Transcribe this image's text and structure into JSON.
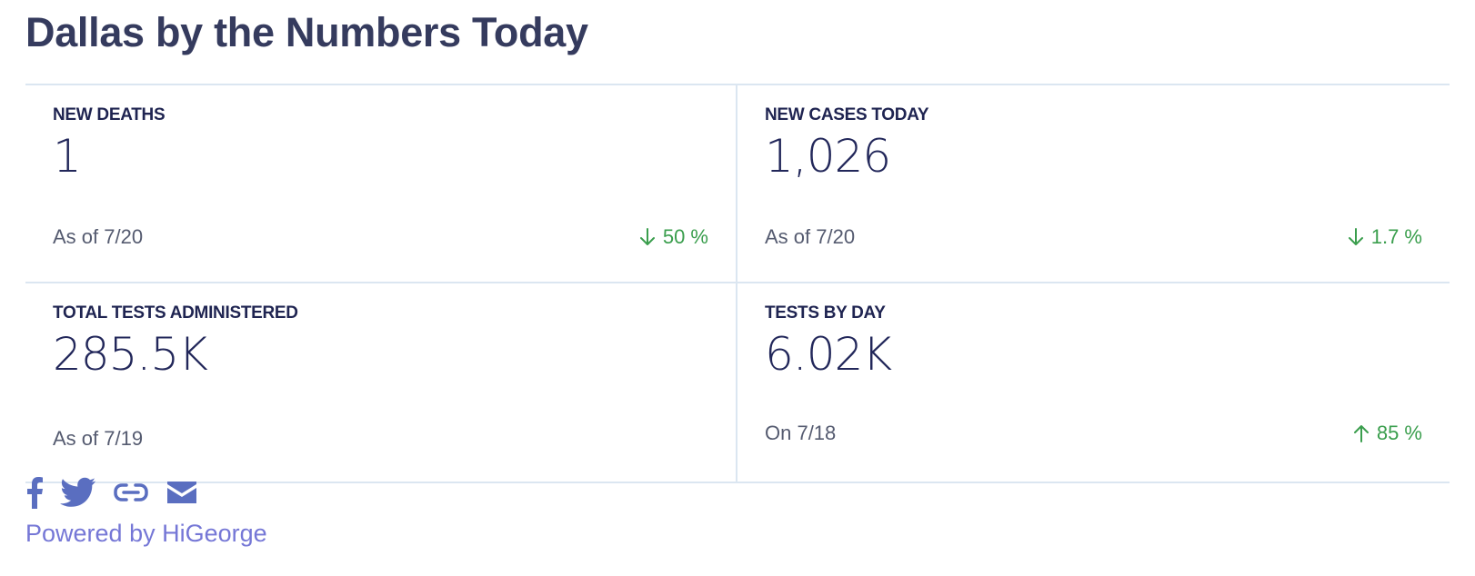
{
  "header": {
    "title": "Dallas by the Numbers Today"
  },
  "cards": [
    {
      "label": "NEW DEATHS",
      "value": "1",
      "asof": "As of 7/20",
      "change": {
        "direction": "down",
        "text": "50 %"
      }
    },
    {
      "label": "NEW CASES TODAY",
      "value": "1,026",
      "asof": "As of 7/20",
      "change": {
        "direction": "down",
        "text": "1.7 %"
      }
    },
    {
      "label": "TOTAL TESTS ADMINISTERED",
      "value": "285.5K",
      "asof": "As of 7/19"
    },
    {
      "label": "TESTS BY DAY",
      "value": "6.02K",
      "asof": "On 7/18",
      "change": {
        "direction": "up",
        "text": "85 %"
      }
    }
  ],
  "share": {
    "icons": [
      "facebook-icon",
      "twitter-icon",
      "link-icon",
      "email-icon"
    ],
    "color": "#5a6ec0"
  },
  "footer": {
    "powered_by": "Powered by HiGeorge"
  },
  "colors": {
    "title": "#353b5e",
    "positive_change": "#3a9e4d",
    "divider": "#dbe6f1",
    "link": "#7577d6"
  }
}
